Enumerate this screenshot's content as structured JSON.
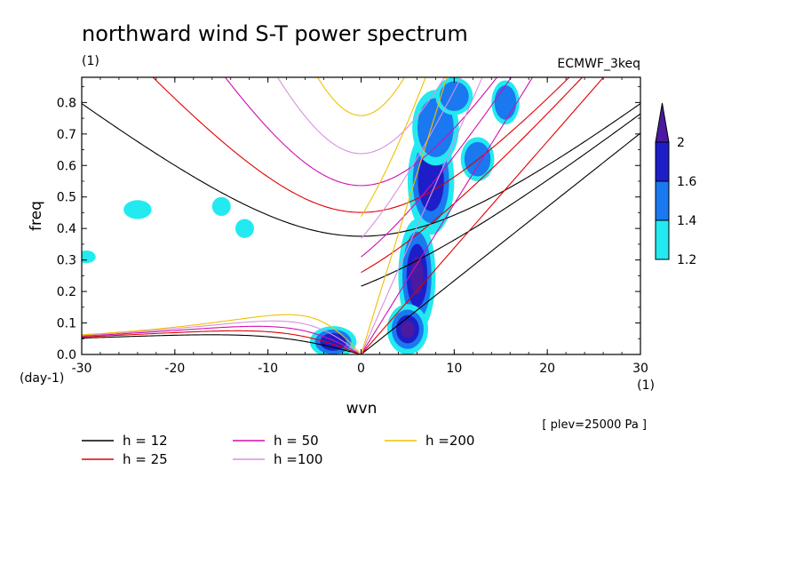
{
  "chart_data": {
    "type": "heatmap",
    "title": "northward wind S-T power spectrum",
    "subtitle_left": "(1)",
    "subtitle_right": "ECMWF_3keq",
    "xlabel": "wvn",
    "ylabel": "freq",
    "x_unit": "(1)",
    "y_unit": "(day-1)",
    "annotation": "[ plev=25000 Pa ]",
    "xlim": [
      -30,
      30
    ],
    "ylim": [
      0,
      0.88
    ],
    "x_ticks": [
      -30,
      -20,
      -10,
      0,
      10,
      20,
      30
    ],
    "x_tick_labels": [
      "-30",
      "-20",
      "-10",
      "0",
      "10",
      "20",
      "30"
    ],
    "y_ticks": [
      0,
      0.1,
      0.2,
      0.3,
      0.4,
      0.5,
      0.6,
      0.7,
      0.8
    ],
    "y_tick_labels": [
      "0.0",
      "0.1",
      "0.2",
      "0.3",
      "0.4",
      "0.5",
      "0.6",
      "0.7",
      "0.8"
    ],
    "colorbar": {
      "levels": [
        1.2,
        1.4,
        1.6,
        2
      ],
      "labels": [
        "1.2",
        "1.4",
        "1.6",
        "2"
      ],
      "colors": [
        "#22eaf0",
        "#1a78f0",
        "#1e1ec8",
        "#4a1aa0"
      ]
    },
    "dispersion_curves": [
      {
        "name": "h = 12",
        "h": 12,
        "color": "#000000"
      },
      {
        "name": "h = 25",
        "h": 25,
        "color": "#e00000"
      },
      {
        "name": "h = 50",
        "h": 50,
        "color": "#d010b0"
      },
      {
        "name": "h =100",
        "h": 100,
        "color": "#d890e0"
      },
      {
        "name": "h =200",
        "h": 200,
        "color": "#f0c000"
      }
    ],
    "contour_blobs": [
      {
        "k": 7.5,
        "f": 0.55,
        "rk": 2.5,
        "rf": 0.17,
        "level": 2
      },
      {
        "k": 6.0,
        "f": 0.25,
        "rk": 2.0,
        "rf": 0.18,
        "level": 3
      },
      {
        "k": 5.0,
        "f": 0.08,
        "rk": 2.2,
        "rf": 0.08,
        "level": 3
      },
      {
        "k": 8.0,
        "f": 0.72,
        "rk": 2.5,
        "rf": 0.12,
        "level": 1
      },
      {
        "k": 10.0,
        "f": 0.82,
        "rk": 2.0,
        "rf": 0.06,
        "level": 1
      },
      {
        "k": -3.0,
        "f": 0.04,
        "rk": 2.5,
        "rf": 0.05,
        "level": 2
      },
      {
        "k": 15.5,
        "f": 0.8,
        "rk": 1.5,
        "rf": 0.07,
        "level": 1
      },
      {
        "k": 12.5,
        "f": 0.62,
        "rk": 1.8,
        "rf": 0.07,
        "level": 1
      },
      {
        "k": -24.0,
        "f": 0.46,
        "rk": 1.5,
        "rf": 0.03,
        "level": 0
      },
      {
        "k": -29.5,
        "f": 0.31,
        "rk": 1.0,
        "rf": 0.02,
        "level": 0
      },
      {
        "k": -15.0,
        "f": 0.47,
        "rk": 1.0,
        "rf": 0.03,
        "level": 0
      },
      {
        "k": -12.5,
        "f": 0.4,
        "rk": 1.0,
        "rf": 0.03,
        "level": 0
      }
    ]
  }
}
